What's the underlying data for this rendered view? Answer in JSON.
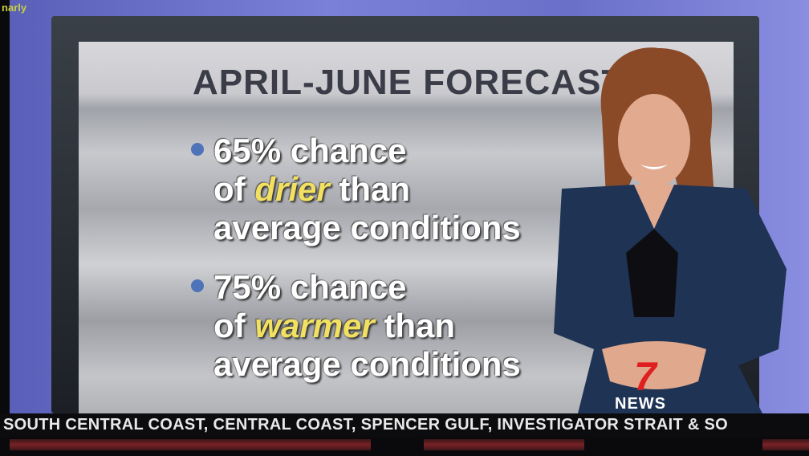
{
  "watermark": "narly",
  "graphic": {
    "title": "APRIL-JUNE FORECAST",
    "bullets": [
      {
        "line1": "65% chance",
        "line2_pre": "of ",
        "highlight": "drier",
        "line2_post": " than",
        "line3": "average conditions"
      },
      {
        "line1": "75% chance",
        "line2_pre": "of ",
        "highlight": "warmer",
        "line2_post": " than",
        "line3": "average conditions"
      }
    ],
    "highlight_color": "#f2e060",
    "bullet_color": "#4e73b8"
  },
  "logo": {
    "number": "7",
    "text": "NEWS",
    "color": "#e02020"
  },
  "ticker": {
    "text": "SOUTH CENTRAL COAST, CENTRAL COAST, SPENCER GULF, INVESTIGATOR STRAIT & SO"
  }
}
